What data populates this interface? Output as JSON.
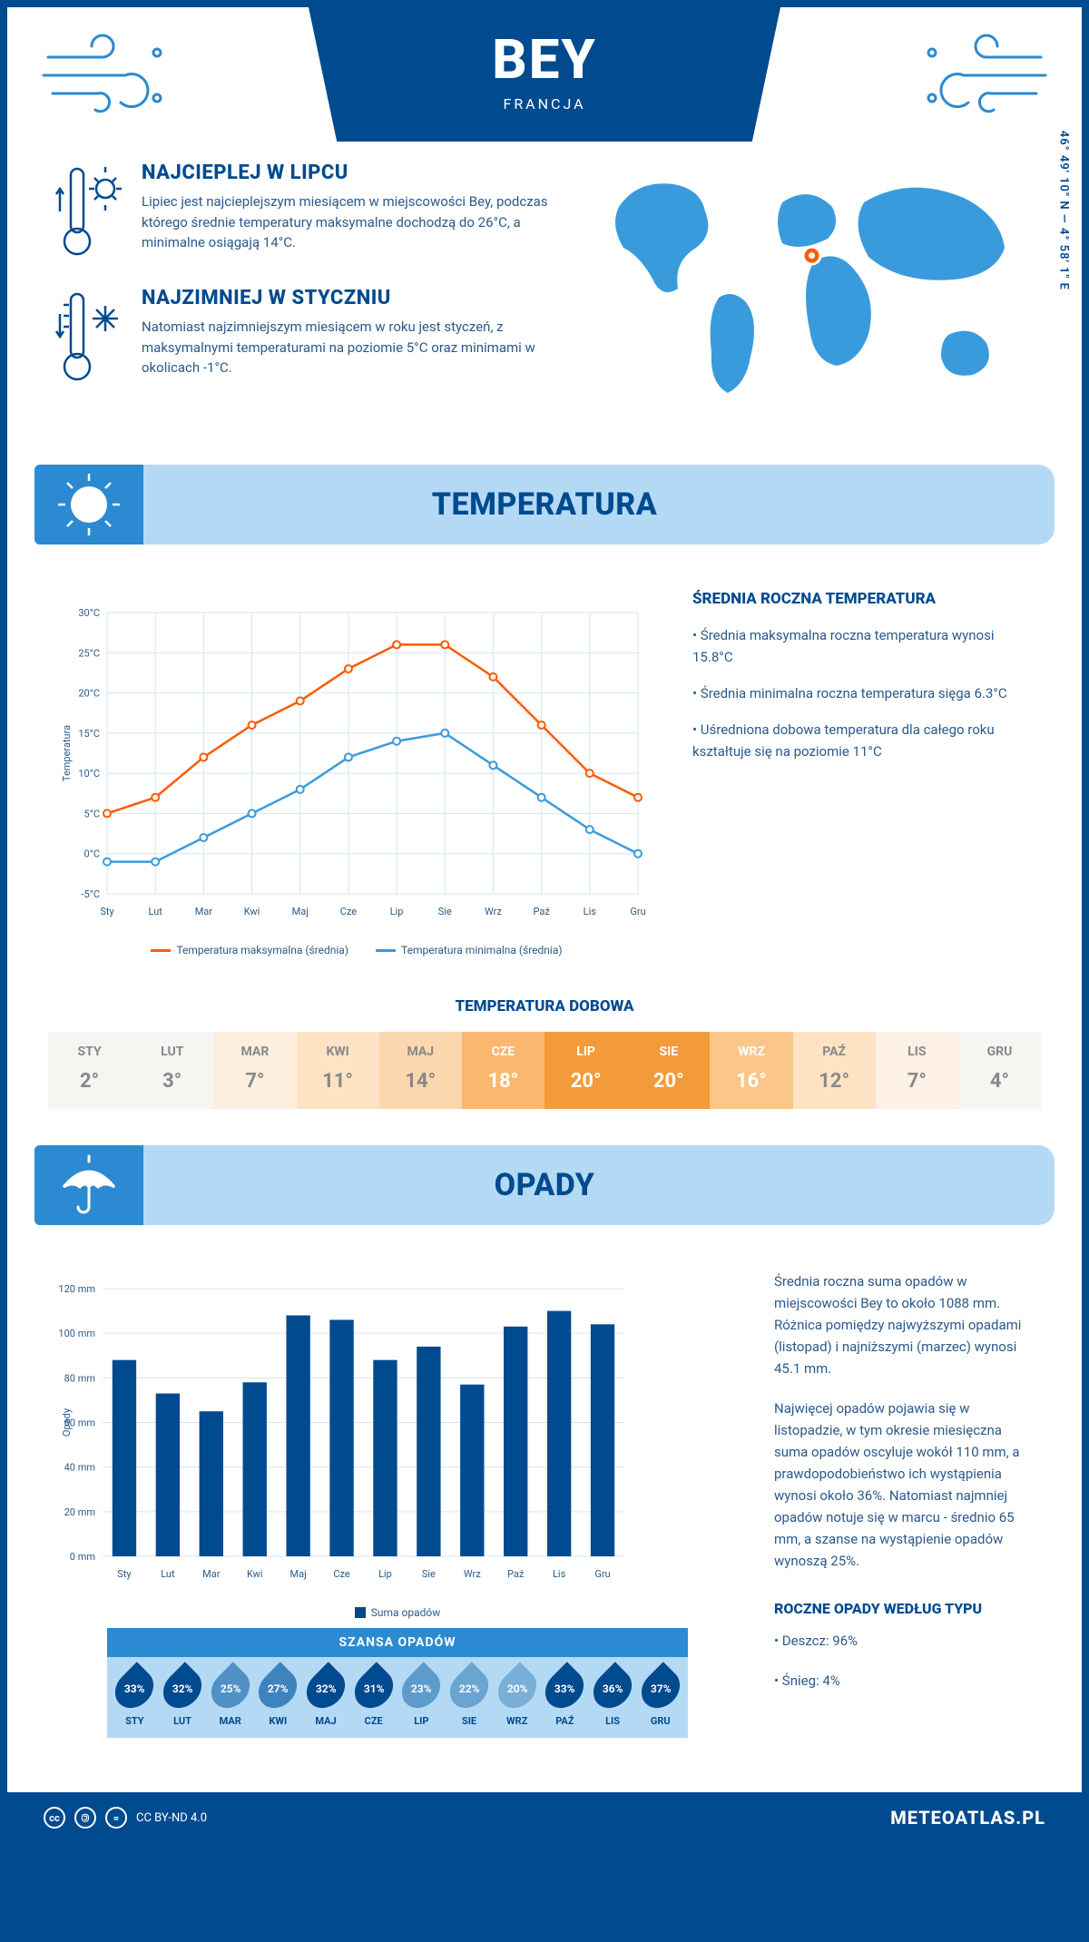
{
  "header": {
    "title": "BEY",
    "subtitle": "FRANCJA"
  },
  "coords": "46° 49' 10\" N — 4° 58' 1\" E",
  "facts": {
    "hot": {
      "title": "NAJCIEPLEJ W LIPCU",
      "text": "Lipiec jest najcieplejszym miesiącem w miejscowości Bey, podczas którego średnie temperatury maksymalne dochodzą do 26°C, a minimalne osiągają 14°C."
    },
    "cold": {
      "title": "NAJZIMNIEJ W STYCZNIU",
      "text": "Natomiast najzimniejszym miesiącem w roku jest styczeń, z maksymalnymi temperaturami na poziomie 5°C oraz minimami w okolicach -1°C."
    }
  },
  "map": {
    "marker_color": "#ff5a00",
    "land_color": "#3a9bdc",
    "marker_x": 0.505,
    "marker_y": 0.37
  },
  "sections": {
    "temperature": "TEMPERATURA",
    "precipitation": "OPADY"
  },
  "months_short": [
    "Sty",
    "Lut",
    "Mar",
    "Kwi",
    "Maj",
    "Cze",
    "Lip",
    "Sie",
    "Wrz",
    "Paź",
    "Lis",
    "Gru"
  ],
  "months_upper": [
    "STY",
    "LUT",
    "MAR",
    "KWI",
    "MAJ",
    "CZE",
    "LIP",
    "SIE",
    "WRZ",
    "PAŹ",
    "LIS",
    "GRU"
  ],
  "temp_chart": {
    "type": "line",
    "ylabel": "Temperatura",
    "ylim": [
      -5,
      30
    ],
    "ytick_step": 5,
    "grid_color": "#d3e5f2",
    "series": [
      {
        "name": "Temperatura maksymalna (średnia)",
        "color": "#ff5a00",
        "values": [
          5,
          7,
          12,
          16,
          19,
          23,
          26,
          26,
          22,
          16,
          10,
          7
        ]
      },
      {
        "name": "Temperatura minimalna (średnia)",
        "color": "#3a9bdc",
        "values": [
          -1,
          -1,
          2,
          5,
          8,
          12,
          14,
          15,
          11,
          7,
          3,
          0
        ]
      }
    ]
  },
  "temp_side": {
    "title": "ŚREDNIA ROCZNA TEMPERATURA",
    "bullets": [
      "Średnia maksymalna roczna temperatura wynosi 15.8°C",
      "Średnia minimalna roczna temperatura sięga 6.3°C",
      "Uśredniona dobowa temperatura dla całego roku kształtuje się na poziomie 11°C"
    ]
  },
  "daily": {
    "title": "TEMPERATURA DOBOWA",
    "values": [
      "2°",
      "3°",
      "7°",
      "11°",
      "14°",
      "18°",
      "20°",
      "20°",
      "16°",
      "12°",
      "7°",
      "4°"
    ],
    "bg_colors": [
      "#f5f5f2",
      "#f5f5f2",
      "#fdeedd",
      "#fde3c4",
      "#fbd7ad",
      "#f9b86e",
      "#f39a3a",
      "#f39a3a",
      "#fac68a",
      "#fde3c4",
      "#fdf1e5",
      "#f5f5f2"
    ],
    "fg_colors": [
      "#888",
      "#888",
      "#888",
      "#888",
      "#888",
      "#fff",
      "#fff",
      "#fff",
      "#fff",
      "#888",
      "#888",
      "#888"
    ]
  },
  "rain_chart": {
    "type": "bar",
    "ylabel": "Opady",
    "ylim": [
      0,
      120
    ],
    "ytick_step": 20,
    "bar_color": "#004a8f",
    "grid_color": "#d3e5f2",
    "legend": "Suma opadów",
    "values": [
      88,
      73,
      65,
      78,
      108,
      106,
      88,
      94,
      77,
      103,
      110,
      104
    ]
  },
  "rain_side": {
    "p1": "Średnia roczna suma opadów w miejscowości Bey to około 1088 mm. Różnica pomiędzy najwyższymi opadami (listopad) i najniższymi (marzec) wynosi 45.1 mm.",
    "p2": "Najwięcej opadów pojawia się w listopadzie, w tym okresie miesięczna suma opadów oscyluje wokół 110 mm, a prawdopodobieństwo ich wystąpienia wynosi około 36%. Natomiast najmniej opadów notuje się w marcu - średnio 65 mm, a szanse na wystąpienie opadów wynoszą 25%.",
    "type_title": "ROCZNE OPADY WEDŁUG TYPU",
    "types": [
      "Deszcz: 96%",
      "Śnieg: 4%"
    ]
  },
  "chance": {
    "title": "SZANSA OPADÓW",
    "values": [
      33,
      32,
      25,
      27,
      32,
      31,
      23,
      22,
      20,
      33,
      36,
      37
    ],
    "colors": [
      "#004a8f",
      "#004a8f",
      "#4f91c6",
      "#3d83bd",
      "#004a8f",
      "#004a8f",
      "#5c9bcc",
      "#6aa5d1",
      "#79afd6",
      "#004a8f",
      "#004a8f",
      "#004a8f"
    ]
  },
  "footer": {
    "license": "CC BY-ND 4.0",
    "brand": "METEOATLAS.PL"
  },
  "palette": {
    "primary": "#004a8f",
    "light": "#b4d9f5",
    "mid": "#2b8ad1",
    "text": "#2b5a8a"
  }
}
